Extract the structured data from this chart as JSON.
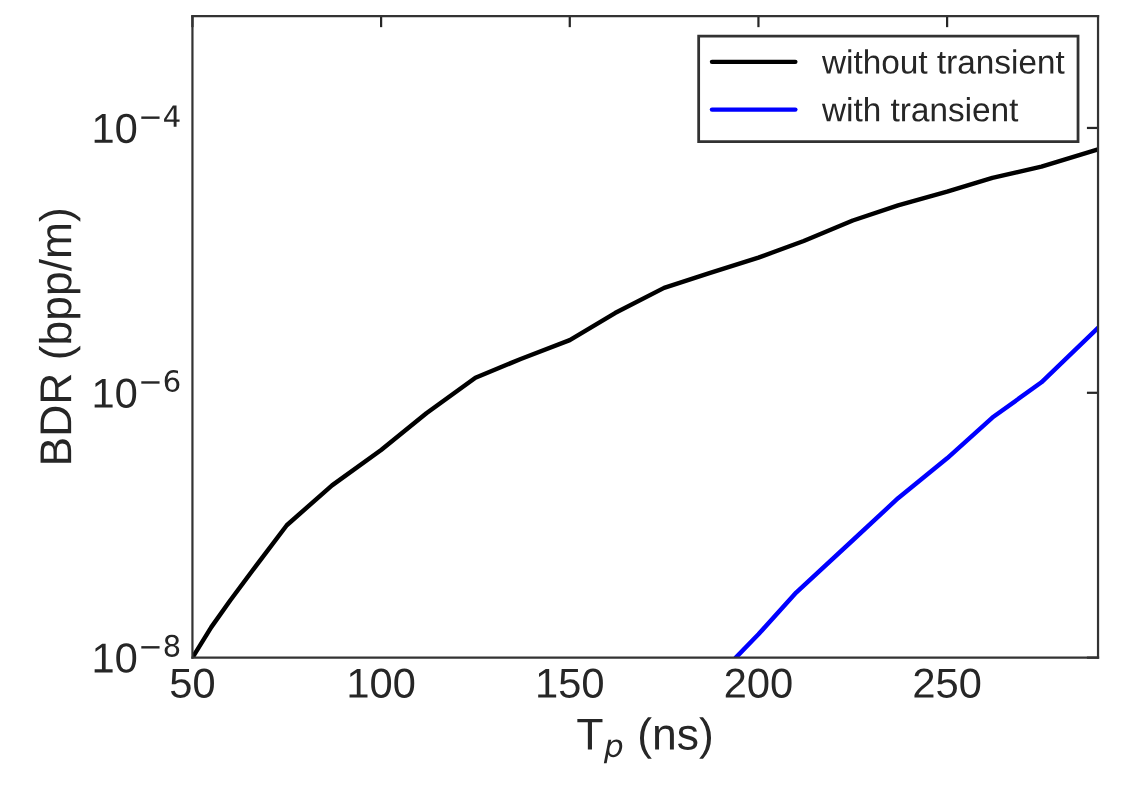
{
  "chart_data": {
    "type": "line",
    "xlabel": "T$_{p}$ (ns)",
    "ylabel": "BDR (bpp/m)",
    "log": "y",
    "xlim": [
      50,
      290
    ],
    "xticks": [
      50,
      100,
      150,
      200,
      250
    ],
    "ylim": [
      1e-08,
      0.0007
    ],
    "yticks": [
      {
        "value": 1e-08,
        "label": "10$^{−8}$"
      },
      {
        "value": 1e-06,
        "label": "10$^{−6}$"
      },
      {
        "value": 0.0001,
        "label": "10$^{−4}$"
      }
    ],
    "grid": false,
    "legend": "top right",
    "line_style": "solid",
    "marker": "none",
    "series": [
      {
        "name": "without transient",
        "color": "#000000",
        "x": [
          50,
          55,
          60,
          67,
          75,
          87,
          100,
          112,
          125,
          137,
          150,
          162,
          175,
          187,
          200,
          212,
          225,
          237,
          250,
          262,
          275,
          290
        ],
        "values": [
          1e-08,
          1.7e-08,
          2.7e-08,
          5e-08,
          1e-07,
          2e-07,
          3.7e-07,
          7e-07,
          1.3e-06,
          1.8e-06,
          2.5e-06,
          4e-06,
          6.2e-06,
          8e-06,
          1.05e-05,
          1.4e-05,
          2e-05,
          2.6e-05,
          3.3e-05,
          4.2e-05,
          5.1e-05,
          6.9e-05
        ]
      },
      {
        "name": "with transient",
        "color": "#0000ff",
        "x": [
          194,
          200,
          210,
          225,
          237,
          250,
          262,
          275,
          290
        ],
        "values": [
          1e-08,
          1.5e-08,
          3.1e-08,
          7.7e-08,
          1.6e-07,
          3.2e-07,
          6.5e-07,
          1.2e-06,
          3.1e-06
        ]
      }
    ]
  }
}
